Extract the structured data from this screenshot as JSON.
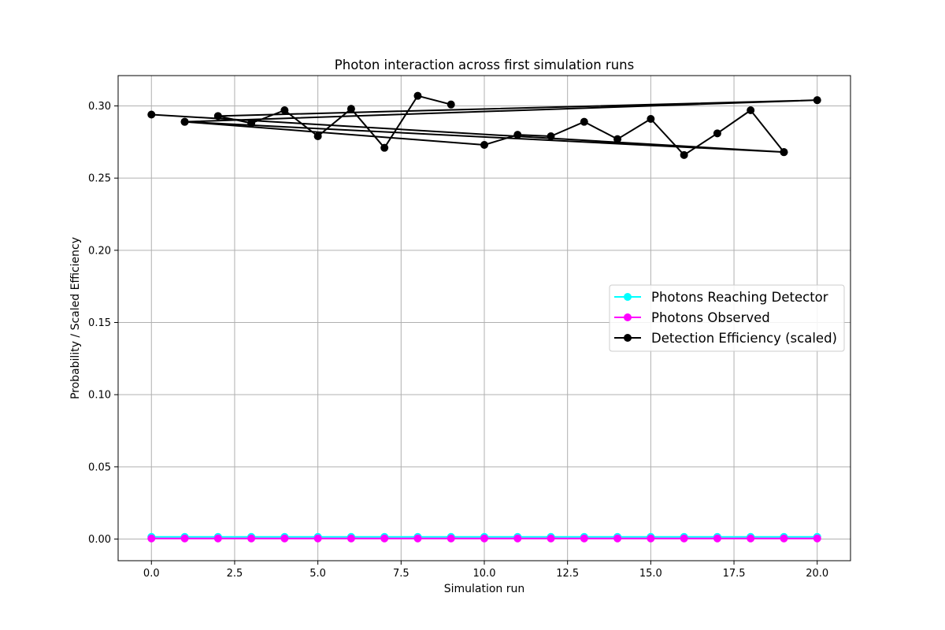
{
  "chart_data": {
    "type": "line",
    "title": "Photon interaction across first simulation runs",
    "xlabel": "Simulation run",
    "ylabel": "Probability / Scaled Efficiency",
    "xlim": [
      -1,
      21
    ],
    "ylim": [
      -0.015,
      0.321
    ],
    "xticks": [
      0.0,
      2.5,
      5.0,
      7.5,
      10.0,
      12.5,
      15.0,
      17.5,
      20.0
    ],
    "xtick_labels": [
      "0.0",
      "2.5",
      "5.0",
      "7.5",
      "10.0",
      "12.5",
      "15.0",
      "17.5",
      "20.0"
    ],
    "yticks": [
      0.0,
      0.05,
      0.1,
      0.15,
      0.2,
      0.25,
      0.3
    ],
    "ytick_labels": [
      "0.00",
      "0.05",
      "0.10",
      "0.15",
      "0.20",
      "0.25",
      "0.30"
    ],
    "grid": true,
    "legend_position": "center-right",
    "series": [
      {
        "name": "Photons Reaching Detector",
        "color": "#00ffff",
        "x": [
          0,
          1,
          2,
          3,
          4,
          5,
          6,
          7,
          8,
          9,
          10,
          11,
          12,
          13,
          14,
          15,
          16,
          17,
          18,
          19,
          20
        ],
        "y": [
          0.0015,
          0.0015,
          0.0015,
          0.0015,
          0.0015,
          0.0015,
          0.0015,
          0.0015,
          0.0015,
          0.0015,
          0.0015,
          0.0015,
          0.0015,
          0.0015,
          0.0015,
          0.0015,
          0.0015,
          0.0015,
          0.0015,
          0.0015,
          0.0015
        ]
      },
      {
        "name": "Photons Observed",
        "color": "#ff00ff",
        "x": [
          0,
          1,
          2,
          3,
          4,
          5,
          6,
          7,
          8,
          9,
          10,
          11,
          12,
          13,
          14,
          15,
          16,
          17,
          18,
          19,
          20
        ],
        "y": [
          0.0004,
          0.0004,
          0.0004,
          0.0004,
          0.0004,
          0.0004,
          0.0004,
          0.0004,
          0.0004,
          0.0004,
          0.0004,
          0.0004,
          0.0004,
          0.0004,
          0.0004,
          0.0004,
          0.0004,
          0.0004,
          0.0004,
          0.0004,
          0.0004
        ]
      },
      {
        "name": "Detection Efficiency (scaled)",
        "color": "#000000",
        "x": [
          0,
          19,
          1,
          20,
          2,
          3,
          4,
          5,
          6,
          7,
          8,
          9
        ],
        "y": [
          0.294,
          0.268,
          0.289,
          0.304,
          0.293,
          0.288,
          0.297,
          0.279,
          0.298,
          0.271,
          0.307,
          0.301
        ],
        "x_b": [
          1,
          10,
          11,
          12,
          13,
          14,
          15,
          16,
          17,
          18,
          19
        ],
        "y_b": [
          0.289,
          0.273,
          0.28,
          0.279,
          0.289,
          0.277,
          0.291,
          0.266,
          0.281,
          0.297,
          0.268
        ]
      }
    ]
  }
}
